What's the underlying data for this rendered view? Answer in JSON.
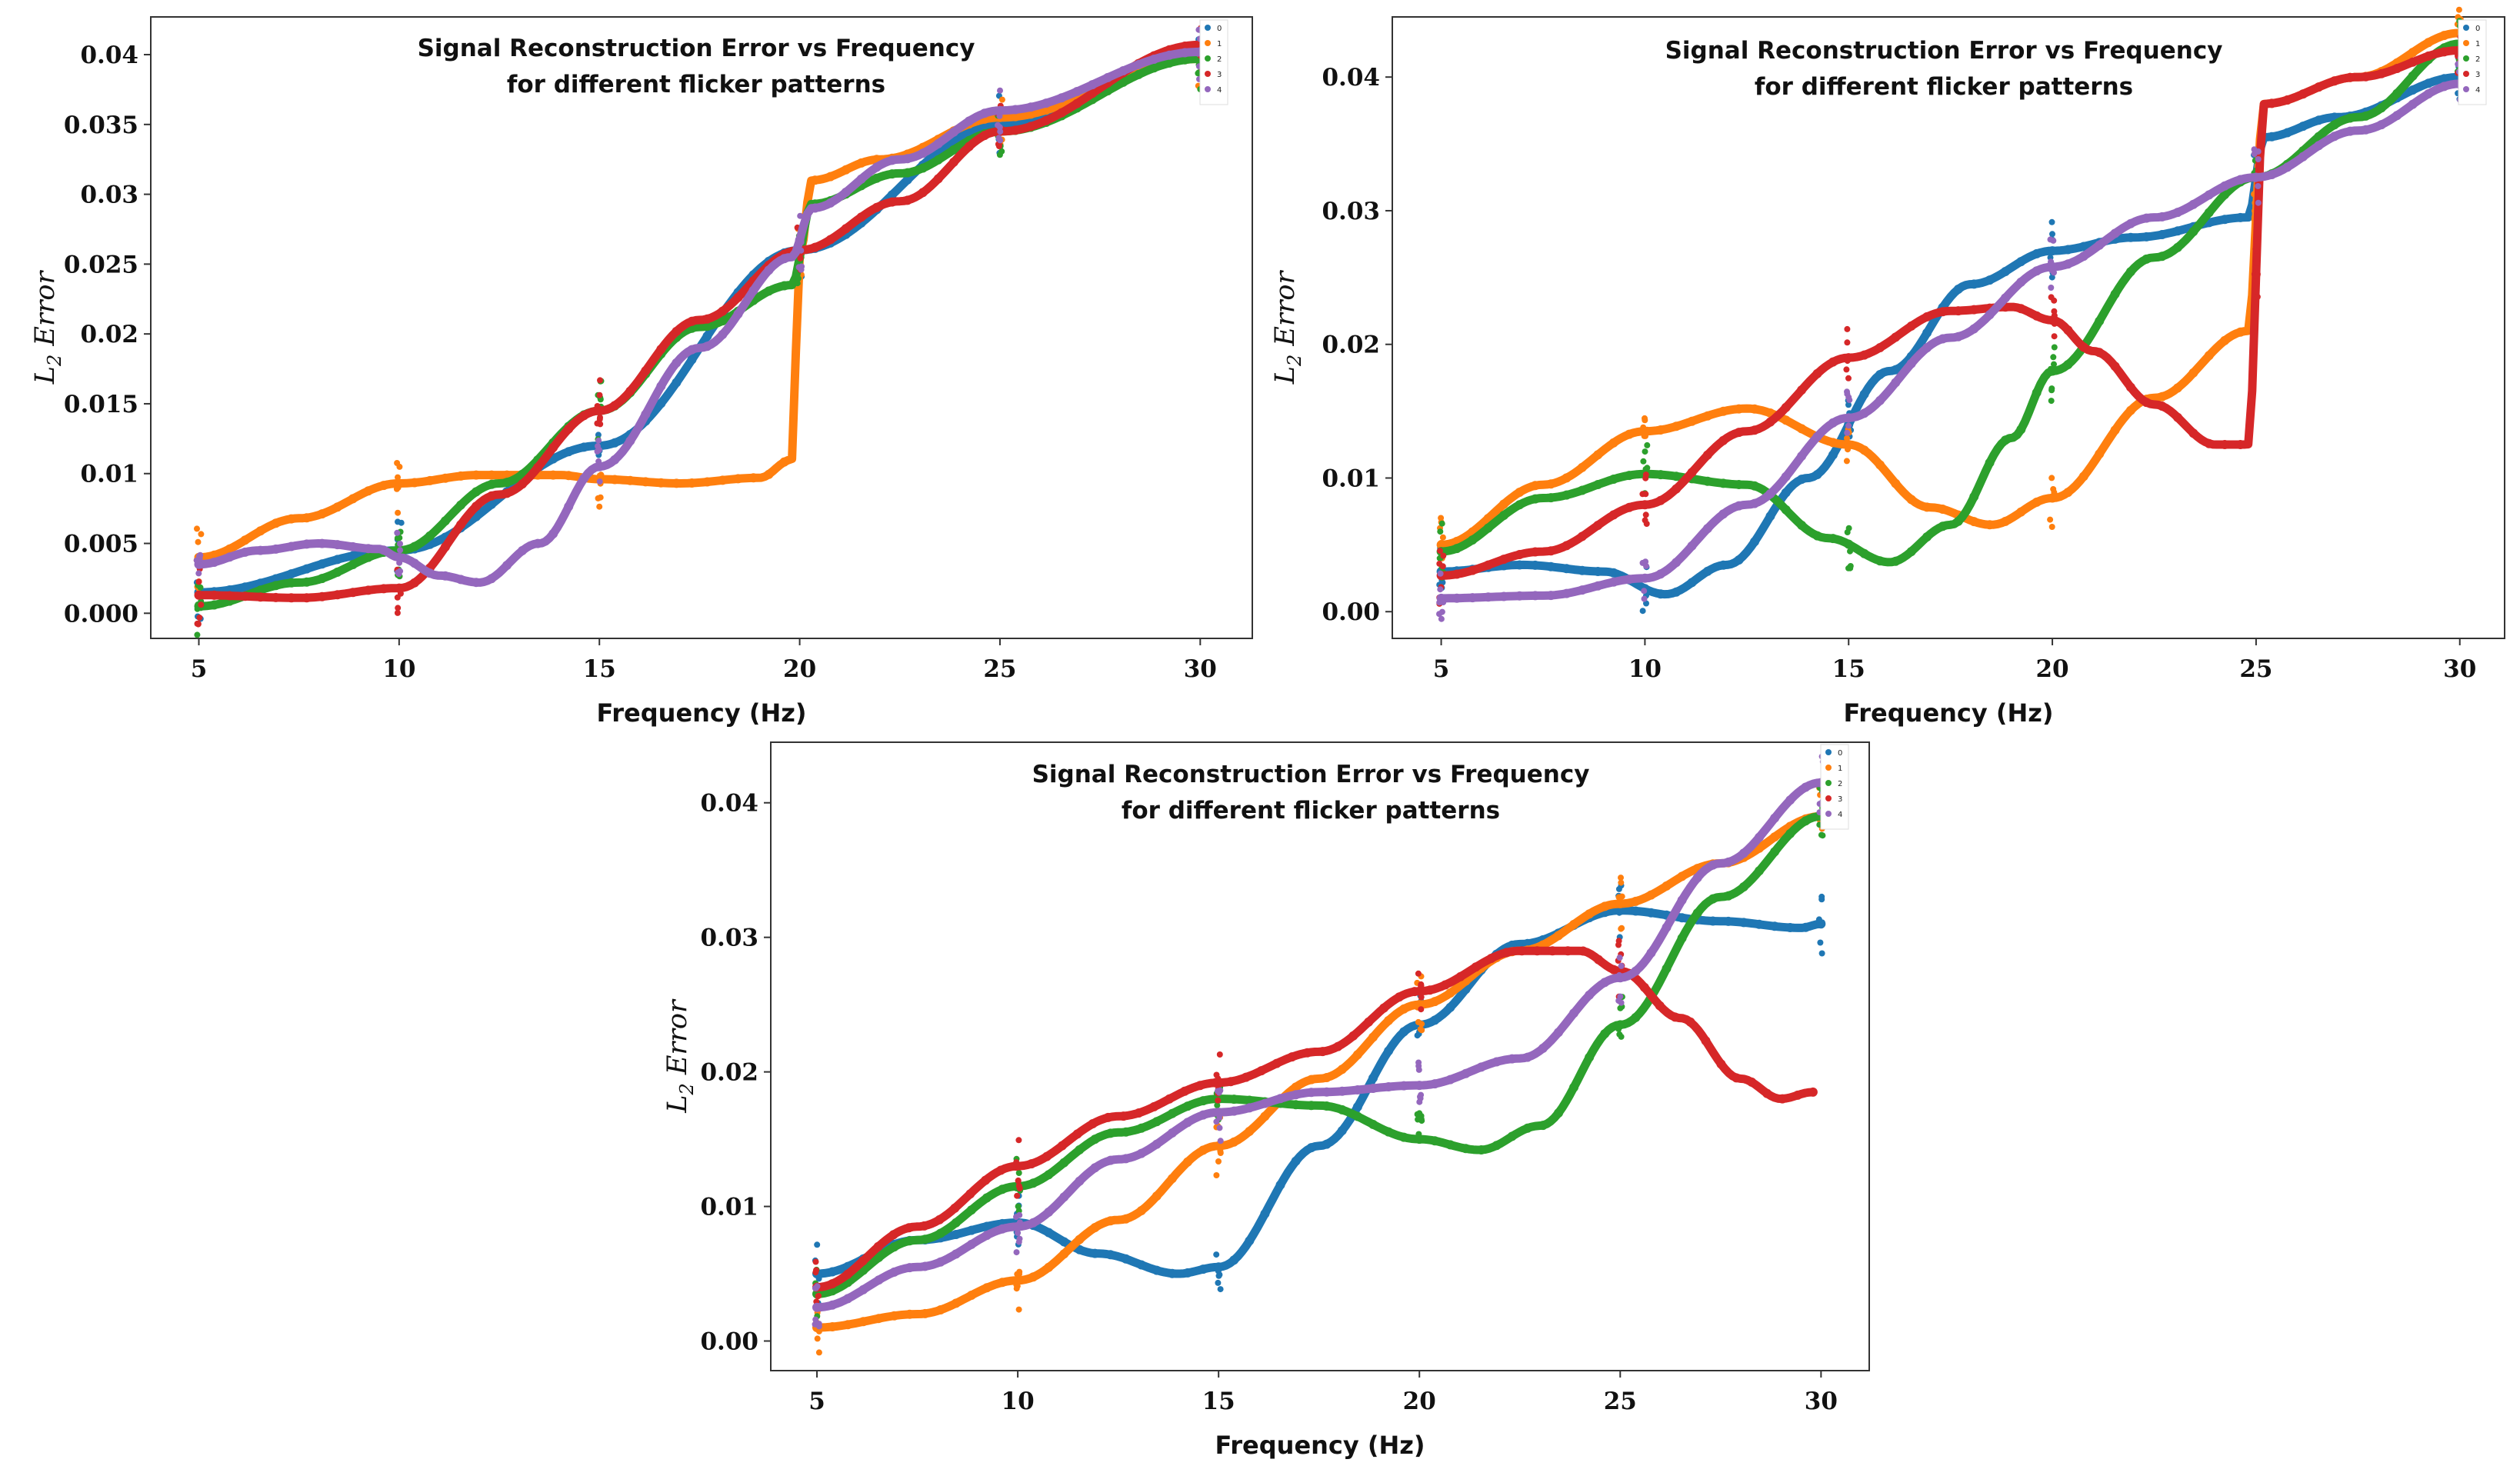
{
  "chart_data": [
    {
      "type": "scatter",
      "title": "Signal Reconstruction Error vs Frequency",
      "subtitle": "for different flicker patterns",
      "xlabel": "Frequency (Hz)",
      "ylabel_base": "L",
      "ylabel_sub": "2",
      "ylabel_rest": " Error",
      "xlim": [
        3.8,
        31.3
      ],
      "ylim": [
        -0.0018,
        0.0427
      ],
      "xticks": [
        5,
        10,
        15,
        20,
        25,
        30
      ],
      "xtick_labels": [
        "5",
        "10",
        "15",
        "20",
        "25",
        "30"
      ],
      "yticks": [
        0,
        0.005,
        0.01,
        0.015,
        0.02,
        0.025,
        0.03,
        0.035,
        0.04
      ],
      "ytick_labels": [
        "0.000",
        "0.005",
        "0.01",
        "0.015",
        "0.02",
        "0.025",
        "0.03",
        "0.035",
        "0.04"
      ],
      "legend_position": "top-right",
      "series": [
        {
          "name": "0",
          "color": "#1f77b4",
          "x": [
            5,
            10,
            15,
            20,
            25,
            30
          ],
          "y": [
            0.0015,
            0.0045,
            0.012,
            0.026,
            0.035,
            0.04
          ]
        },
        {
          "name": "1",
          "color": "#ff7f0e",
          "x": [
            5,
            7.5,
            10,
            12,
            14,
            15,
            17,
            19,
            19.8,
            20,
            20.3,
            22,
            25,
            30
          ],
          "y": [
            0.004,
            0.0068,
            0.0093,
            0.0099,
            0.0099,
            0.0096,
            0.0093,
            0.0097,
            0.011,
            0.0255,
            0.031,
            0.0325,
            0.0355,
            0.0397
          ]
        },
        {
          "name": "2",
          "color": "#2ca02c",
          "x": [
            5,
            7.5,
            10,
            12.5,
            15,
            17.5,
            19.8,
            20.3,
            22.5,
            25,
            30
          ],
          "y": [
            0.0005,
            0.0022,
            0.0045,
            0.0093,
            0.0145,
            0.0205,
            0.0235,
            0.0293,
            0.0315,
            0.0345,
            0.0397
          ]
        },
        {
          "name": "3",
          "color": "#d62728",
          "x": [
            5,
            7.5,
            10,
            12.5,
            15,
            17.5,
            20,
            22.5,
            25,
            30
          ],
          "y": [
            0.0013,
            0.0011,
            0.0018,
            0.0085,
            0.0145,
            0.021,
            0.026,
            0.0295,
            0.0345,
            0.0407
          ]
        },
        {
          "name": "4",
          "color": "#9467bd",
          "x": [
            5,
            6.5,
            8,
            9.5,
            10,
            11,
            12,
            13.5,
            15,
            17.5,
            19.8,
            20.3,
            22.5,
            25,
            30
          ],
          "y": [
            0.0035,
            0.0045,
            0.005,
            0.0046,
            0.004,
            0.0027,
            0.0022,
            0.005,
            0.0105,
            0.019,
            0.0255,
            0.029,
            0.0325,
            0.036,
            0.0402
          ]
        }
      ]
    },
    {
      "type": "scatter",
      "title": "Signal Reconstruction Error vs Frequency",
      "subtitle": "for different flicker patterns",
      "xlabel": "Frequency (Hz)",
      "ylabel_base": "L",
      "ylabel_sub": "2",
      "ylabel_rest": " Error",
      "xlim": [
        3.8,
        31.1
      ],
      "ylim": [
        -0.002,
        0.0445
      ],
      "xticks": [
        5,
        10,
        15,
        20,
        25,
        30
      ],
      "xtick_labels": [
        "5",
        "10",
        "15",
        "20",
        "25",
        "30"
      ],
      "yticks": [
        0,
        0.01,
        0.02,
        0.03,
        0.04
      ],
      "ytick_labels": [
        "0.00",
        "0.01",
        "0.02",
        "0.03",
        "0.04"
      ],
      "legend_position": "top-right",
      "series": [
        {
          "name": "0",
          "color": "#1f77b4",
          "x": [
            5,
            7,
            9,
            10.5,
            12,
            14,
            16,
            18,
            20,
            22,
            24.8,
            25.2,
            27,
            30
          ],
          "y": [
            0.003,
            0.0035,
            0.003,
            0.0013,
            0.0035,
            0.01,
            0.018,
            0.0245,
            0.027,
            0.028,
            0.0295,
            0.0355,
            0.037,
            0.04
          ]
        },
        {
          "name": "1",
          "color": "#ff7f0e",
          "x": [
            5,
            7.5,
            10,
            12.5,
            15,
            17,
            18.5,
            20,
            22.5,
            24.8,
            25.2,
            27.5,
            30
          ],
          "y": [
            0.005,
            0.0095,
            0.0135,
            0.0152,
            0.0125,
            0.0078,
            0.0065,
            0.0085,
            0.016,
            0.021,
            0.038,
            0.04,
            0.0433
          ]
        },
        {
          "name": "2",
          "color": "#2ca02c",
          "x": [
            5,
            7.5,
            10,
            12.5,
            14.5,
            16,
            17.5,
            19,
            20,
            22.5,
            25,
            27.5,
            30
          ],
          "y": [
            0.0045,
            0.0085,
            0.0103,
            0.0095,
            0.0055,
            0.0037,
            0.0065,
            0.013,
            0.018,
            0.0265,
            0.0325,
            0.037,
            0.0425
          ]
        },
        {
          "name": "3",
          "color": "#d62728",
          "x": [
            5,
            7.5,
            10,
            12.5,
            15,
            17.5,
            19,
            20,
            21,
            22.5,
            24,
            24.8,
            25.2,
            27.5,
            30
          ],
          "y": [
            0.0027,
            0.0045,
            0.008,
            0.0135,
            0.019,
            0.0225,
            0.0228,
            0.0218,
            0.0195,
            0.0155,
            0.0125,
            0.0125,
            0.038,
            0.04,
            0.042
          ]
        },
        {
          "name": "4",
          "color": "#9467bd",
          "x": [
            5,
            7.5,
            10,
            12.5,
            15,
            17.5,
            20,
            22.5,
            25,
            27.5,
            30
          ],
          "y": [
            0.001,
            0.0012,
            0.0025,
            0.008,
            0.0145,
            0.0205,
            0.0258,
            0.0295,
            0.0325,
            0.036,
            0.0395
          ]
        }
      ]
    },
    {
      "type": "scatter",
      "title": "Signal Reconstruction Error vs Frequency",
      "subtitle": "for different flicker patterns",
      "xlabel": "Frequency (Hz)",
      "ylabel_base": "L",
      "ylabel_sub": "2",
      "ylabel_rest": " Error",
      "xlim": [
        3.85,
        31.2
      ],
      "ylim": [
        -0.0022,
        0.0445
      ],
      "xticks": [
        5,
        10,
        15,
        20,
        25,
        30
      ],
      "xtick_labels": [
        "5",
        "10",
        "15",
        "20",
        "25",
        "30"
      ],
      "yticks": [
        0,
        0.01,
        0.02,
        0.03,
        0.04
      ],
      "ytick_labels": [
        "0.00",
        "0.01",
        "0.02",
        "0.03",
        "0.04"
      ],
      "legend_position": "top-right",
      "series": [
        {
          "name": "0",
          "color": "#1f77b4",
          "x": [
            5,
            7.5,
            10,
            12,
            14,
            15,
            17.5,
            20,
            22.5,
            25,
            27.5,
            29.5,
            30
          ],
          "y": [
            0.005,
            0.0075,
            0.0088,
            0.0065,
            0.005,
            0.0055,
            0.0145,
            0.0235,
            0.0295,
            0.032,
            0.0312,
            0.0307,
            0.031
          ]
        },
        {
          "name": "1",
          "color": "#ff7f0e",
          "x": [
            5,
            7.5,
            10,
            12.5,
            15,
            17.5,
            20,
            22.5,
            25,
            27.5,
            30
          ],
          "y": [
            0.001,
            0.002,
            0.0045,
            0.009,
            0.0145,
            0.0195,
            0.025,
            0.029,
            0.0325,
            0.0355,
            0.039
          ]
        },
        {
          "name": "2",
          "color": "#2ca02c",
          "x": [
            5,
            7.5,
            10,
            12.5,
            15,
            17.5,
            20,
            21.5,
            23,
            25,
            27.5,
            30
          ],
          "y": [
            0.0035,
            0.0075,
            0.0115,
            0.0155,
            0.018,
            0.0175,
            0.015,
            0.0142,
            0.016,
            0.0235,
            0.033,
            0.039
          ]
        },
        {
          "name": "3",
          "color": "#d62728",
          "x": [
            5,
            7.5,
            10,
            12.5,
            15,
            17.5,
            20,
            22.5,
            24,
            25,
            26.5,
            28,
            29,
            29.8
          ],
          "y": [
            0.004,
            0.0085,
            0.013,
            0.0167,
            0.0192,
            0.0215,
            0.026,
            0.029,
            0.029,
            0.0275,
            0.024,
            0.0195,
            0.018,
            0.0185
          ]
        },
        {
          "name": "4",
          "color": "#9467bd",
          "x": [
            5,
            7.5,
            10,
            12.5,
            15,
            17.5,
            20,
            22.5,
            25,
            27.5,
            30
          ],
          "y": [
            0.0025,
            0.0055,
            0.0085,
            0.0135,
            0.017,
            0.0185,
            0.019,
            0.021,
            0.027,
            0.0355,
            0.0415
          ]
        }
      ]
    }
  ]
}
